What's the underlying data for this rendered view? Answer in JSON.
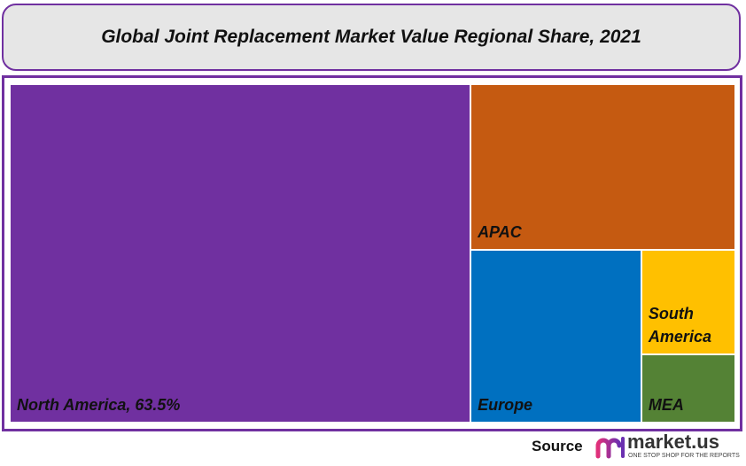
{
  "chart_data": {
    "type": "treemap",
    "title": "Global Joint Replacement Market Value Regional Share, 2021",
    "unit": "%",
    "items": [
      {
        "name": "North America",
        "label": "North America, 63.5%",
        "value": 63.5,
        "color": "#7030a0"
      },
      {
        "name": "APAC",
        "label": "APAC",
        "value": 17.9,
        "color": "#c55a11"
      },
      {
        "name": "Europe",
        "label": "Europe",
        "value": 12.0,
        "color": "#0070c0"
      },
      {
        "name": "South America",
        "label": "South America",
        "value": 4.0,
        "color": "#ffc000"
      },
      {
        "name": "MEA",
        "label": "MEA",
        "value": 2.6,
        "color": "#548235"
      }
    ]
  },
  "footer": {
    "source_label": "Source",
    "logo_text": "market.us",
    "logo_tagline": "ONE STOP SHOP FOR THE REPORTS"
  }
}
